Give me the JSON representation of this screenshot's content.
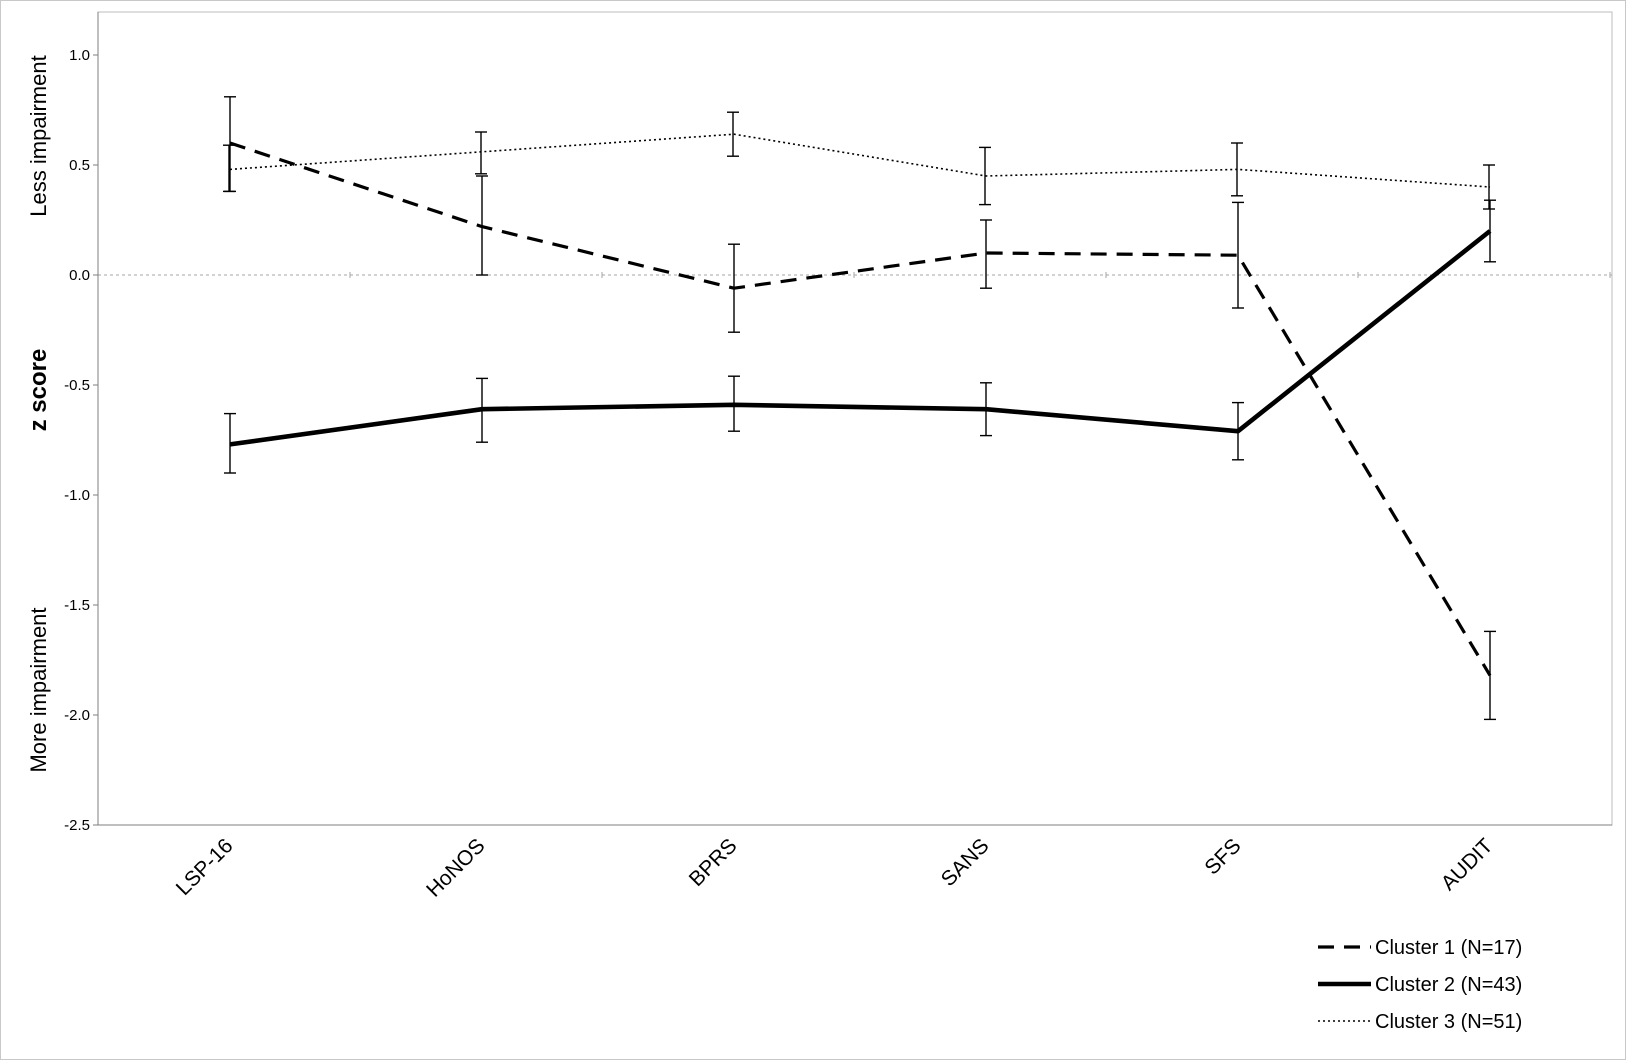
{
  "chart_data": {
    "type": "line",
    "categories": [
      "LSP-16",
      "HoNOS",
      "BPRS",
      "SANS",
      "SFS",
      "AUDIT"
    ],
    "ylim": [
      -2.5,
      1.0
    ],
    "yticks": [
      "1.0",
      "0.5",
      "0.0",
      "-0.5",
      "-1.0",
      "-1.5",
      "-2.0",
      "-2.5"
    ],
    "ytick_values": [
      1.0,
      0.5,
      0.0,
      -0.5,
      -1.0,
      -1.5,
      -2.0,
      -2.5
    ],
    "ylabel": "z score",
    "ylabel_top": "Less impairment",
    "ylabel_bottom": "More impairment",
    "reference_line": 0.0,
    "legend_position": "bottom-right",
    "series": [
      {
        "name": "Cluster 1 (N=17)",
        "style": "dashed",
        "values": [
          0.6,
          0.22,
          -0.06,
          0.1,
          0.09,
          -1.82
        ],
        "error_low": [
          0.38,
          0.0,
          -0.26,
          -0.06,
          -0.15,
          -2.02
        ],
        "error_high": [
          0.81,
          0.45,
          0.14,
          0.25,
          0.33,
          -1.62
        ]
      },
      {
        "name": "Cluster 2 (N=43)",
        "style": "solid",
        "values": [
          -0.77,
          -0.61,
          -0.59,
          -0.61,
          -0.71,
          0.2
        ],
        "error_low": [
          -0.9,
          -0.76,
          -0.71,
          -0.73,
          -0.84,
          0.06
        ],
        "error_high": [
          -0.63,
          -0.47,
          -0.46,
          -0.49,
          -0.58,
          0.34
        ]
      },
      {
        "name": "Cluster 3 (N=51)",
        "style": "dotted",
        "values": [
          0.48,
          0.56,
          0.64,
          0.45,
          0.48,
          0.4
        ],
        "error_low": [
          0.38,
          0.46,
          0.54,
          0.32,
          0.36,
          0.3
        ],
        "error_high": [
          0.59,
          0.65,
          0.74,
          0.58,
          0.6,
          0.5
        ]
      }
    ]
  }
}
